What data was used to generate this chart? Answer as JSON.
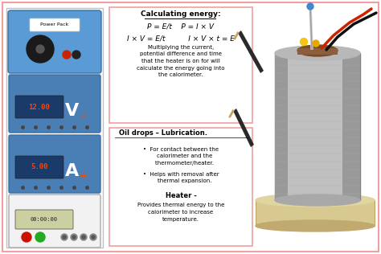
{
  "bg_color": "#ffffff",
  "outer_border_color": "#f0a0a0",
  "top_text_box_border": "#f0a0a0",
  "bottom_text_box_border": "#f0a0a0",
  "title_text": "Calculating energy:",
  "formula1": "P = E/t    P = I × V",
  "formula2": "I × V = E/t          I × V × t = E",
  "desc_text": "Multiplying the current,\npotential difference and time\nthat the heater is on for will\ncalculate the energy going into\nthe calorimeter.",
  "oil_title": "Oil drops – Lubrication.",
  "oil_bullet1": "•  For contact between the\n    calorimeter and the\n    thermometer/heater.",
  "oil_bullet2": "•  Helps with removal after\n    thermal expansion.",
  "heater_title": "Heater -",
  "heater_desc": "Provides thermal energy to the\ncalorimeter to increase\ntemperature.",
  "power_pack_label": "Power Pack",
  "power_pack_bg": "#5b9bd5",
  "fig_width": 4.74,
  "fig_height": 3.16,
  "dpi": 100
}
